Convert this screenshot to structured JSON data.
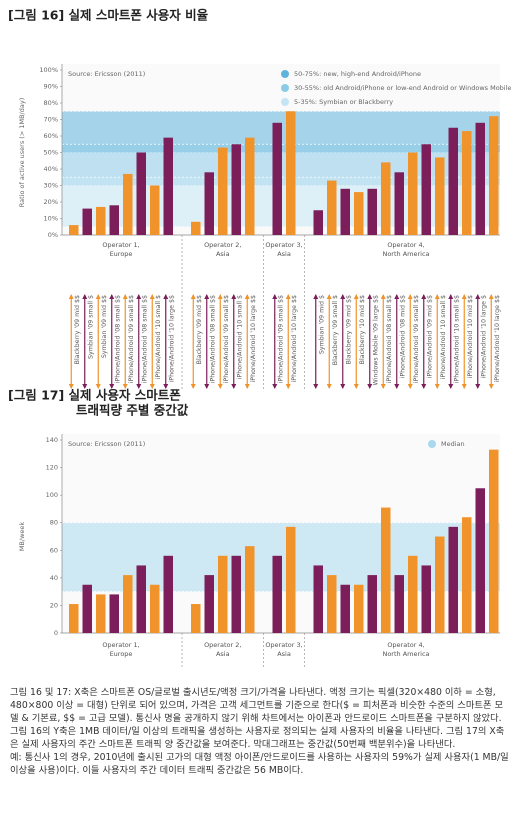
{
  "chart_data": [
    {
      "type": "bar",
      "title": "[그림 16] 실제 스마트폰 사용자 비율",
      "source": "Source: Ericsson (2011)",
      "ylabel": "Ratio of active users (> 1MB/day)",
      "ylim": [
        0,
        100
      ],
      "yticks": [
        {
          "value": 0,
          "label": "0%"
        },
        {
          "value": 10,
          "label": "10%"
        },
        {
          "value": 20,
          "label": "20%"
        },
        {
          "value": 30,
          "label": "30%"
        },
        {
          "value": 40,
          "label": "40%"
        },
        {
          "value": 50,
          "label": "50%"
        },
        {
          "value": 60,
          "label": "60%"
        },
        {
          "value": 70,
          "label": "70%"
        },
        {
          "value": 80,
          "label": "80%"
        },
        {
          "value": 90,
          "label": "90%"
        },
        {
          "value": 100,
          "label": "100%"
        }
      ],
      "bands": [
        {
          "label": "50-75%: new, high-end Android/iPhone",
          "from": 50,
          "to": 75,
          "color": "#5fb4dc"
        },
        {
          "label": "30-55%: old Android/iPhone or low-end Android or Windows Mobile",
          "from": 30,
          "to": 55,
          "color": "#8ccbe8"
        },
        {
          "label": "5-35%: Symbian or Blackberry",
          "from": 5,
          "to": 35,
          "color": "#c5e5f4"
        }
      ],
      "legend": "top-right",
      "groups": [
        {
          "name": [
            "Operator 1,",
            "Europe"
          ],
          "categories": [
            "Blackberry '09 mid $$",
            "Symbian '09 small $",
            "Symbian '09 mid $$",
            "iPhone/Android '08 small $$",
            "iPhone/Android '09 small $$",
            "iPhone/Android '08 small $$",
            "iPhone/Android '10 small $",
            "iPhone/Android '10 large $$"
          ],
          "values": [
            6,
            16,
            17,
            18,
            37,
            50,
            30,
            59
          ],
          "colors": [
            "#f0932b",
            "#7b1e5a",
            "#f0932b",
            "#7b1e5a",
            "#f0932b",
            "#7b1e5a",
            "#f0932b",
            "#7b1e5a"
          ]
        },
        {
          "name": [
            "Operator 2,",
            "Asia"
          ],
          "categories": [
            "Blackberry '09 mid $$",
            "iPhone/Android '08 small $$",
            "iPhone/Android '09 small $$",
            "iPhone/Android '10 small $",
            "iPhone/Android '10 large $$"
          ],
          "values": [
            8,
            38,
            53,
            55,
            59
          ],
          "colors": [
            "#f0932b",
            "#7b1e5a",
            "#f0932b",
            "#7b1e5a",
            "#f0932b"
          ]
        },
        {
          "name": [
            "Operator 3,",
            "Asia"
          ],
          "categories": [
            "iPhone/Android '09 small $$",
            "iPhone/Android '10 large $$"
          ],
          "values": [
            68,
            75
          ],
          "colors": [
            "#7b1e5a",
            "#f0932b"
          ]
        },
        {
          "name": [
            "Operator 4,",
            "North America"
          ],
          "categories": [
            "Symbian '09 mid $",
            "Blackberry '09 small $",
            "Blackberry '09 mid $$",
            "Blackberry '10 mid $$",
            "Windows Mobile '09 large $$",
            "iPhone/Android '08 small $$",
            "iPhone/Android '08 mid $$",
            "iPhone/Android '09 small $$",
            "iPhone/Android '09 mid $$",
            "iPhone/Android '10 small $",
            "iPhone/Android '10 small $$",
            "iPhone/Android '10 mid $$",
            "iPhone/Android '10 large $",
            "iPhone/Android '10 large $$"
          ],
          "values": [
            15,
            33,
            28,
            26,
            28,
            44,
            38,
            50,
            55,
            47,
            65,
            63,
            68,
            72
          ],
          "colors": [
            "#7b1e5a",
            "#f0932b",
            "#7b1e5a",
            "#f0932b",
            "#7b1e5a",
            "#f0932b",
            "#7b1e5a",
            "#f0932b",
            "#7b1e5a",
            "#f0932b",
            "#7b1e5a",
            "#f0932b",
            "#7b1e5a",
            "#f0932b"
          ]
        }
      ]
    },
    {
      "type": "bar",
      "title": [
        "[그림 17] 실제 사용자 스마트폰",
        "트래픽량 주별 중간값"
      ],
      "source": "Source: Ericsson (2011)",
      "ylabel": "MB/week",
      "ylim": [
        0,
        140
      ],
      "yticks": [
        0,
        20,
        40,
        60,
        80,
        100,
        120,
        140
      ],
      "bands": [
        {
          "label": "Median",
          "from": 30,
          "to": 80,
          "color": "#a9d8ef"
        }
      ],
      "legend": "top-right",
      "groups": [
        {
          "name": [
            "Operator 1,",
            "Europe"
          ],
          "values": [
            21,
            35,
            28,
            28,
            42,
            49,
            35,
            56
          ],
          "colors": [
            "#f0932b",
            "#7b1e5a",
            "#f0932b",
            "#7b1e5a",
            "#f0932b",
            "#7b1e5a",
            "#f0932b",
            "#7b1e5a"
          ]
        },
        {
          "name": [
            "Operator 2,",
            "Asia"
          ],
          "values": [
            21,
            42,
            56,
            56,
            63
          ],
          "colors": [
            "#f0932b",
            "#7b1e5a",
            "#f0932b",
            "#7b1e5a",
            "#f0932b"
          ]
        },
        {
          "name": [
            "Operator 3,",
            "Asia"
          ],
          "values": [
            56,
            77
          ],
          "colors": [
            "#7b1e5a",
            "#f0932b"
          ]
        },
        {
          "name": [
            "Operator 4,",
            "North America"
          ],
          "values": [
            49,
            42,
            35,
            35,
            42,
            91,
            42,
            56,
            49,
            70,
            77,
            84,
            105,
            133
          ],
          "colors": [
            "#7b1e5a",
            "#f0932b",
            "#7b1e5a",
            "#f0932b",
            "#7b1e5a",
            "#f0932b",
            "#7b1e5a",
            "#f0932b",
            "#7b1e5a",
            "#f0932b",
            "#7b1e5a",
            "#f0932b",
            "#7b1e5a",
            "#f0932b"
          ]
        }
      ]
    }
  ],
  "notes": [
    "그림 16 및 17: X축은 스마트폰 OS/글로벌 출시년도/액정 크기/가격을 나타낸다. 액정 크기는 픽셀(320×480 이하 = 소형, 480×800 이상 = 대형) 단위로 되어 있으며, 가격은 고객 세그먼트를 기준으로 한다($ = 피처폰과 비슷한 수준의 스마트폰 모델 & 기본료, $$ = 고급 모델). 통신사 명을 공개하지 않기 위해 차트에서는 아이폰과 안드로이드 스마트폰을 구분하지 않았다.",
    "그림 16의 Y축은 1MB 데이터/일 이상의 트래픽을 생성하는 사용자로 정의되는 실제 사용자의 비율을 나타낸다. 그림 17의 X축은 실제 사용자의 주간 스마트폰 트래픽 양 중간값을 보여준다. 막대그래프는 중간값(50번째 백분위수)을 나타낸다.",
    "예: 통신사 1의 경우, 2010년에 출시된 고가의 대형 액정 아이폰/안드로이드를 사용하는 사용자의 59%가 실제 사용자(1 MB/일 이상을 사용)이다. 이들 사용자의 주간 데이터 트래픽 중간값은 56 MB이다."
  ]
}
